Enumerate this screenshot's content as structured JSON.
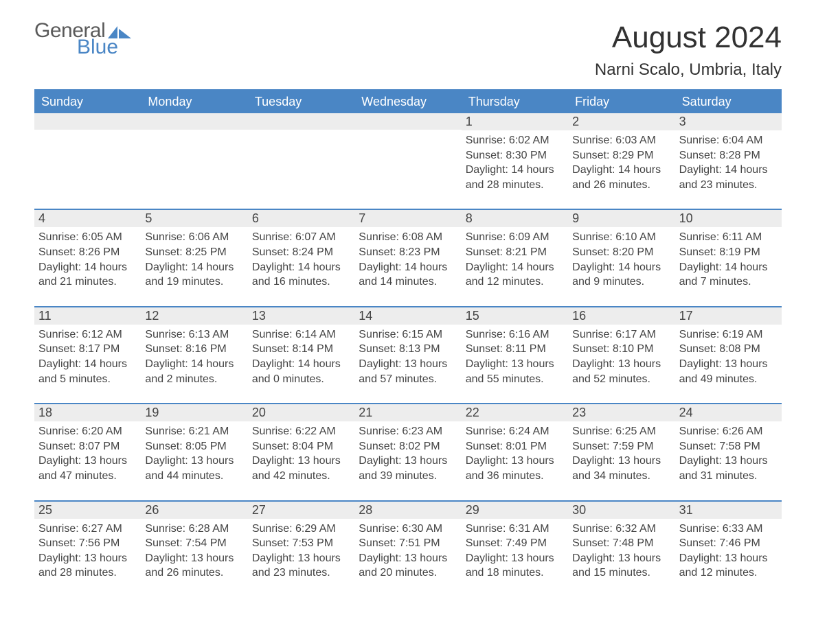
{
  "logo": {
    "text1": "General",
    "text2": "Blue",
    "shape_color": "#4a86c5"
  },
  "title": "August 2024",
  "subtitle": "Narni Scalo, Umbria, Italy",
  "colors": {
    "header_bg": "#4a86c5",
    "header_text": "#ffffff",
    "row_divider": "#4a86c5",
    "daynum_bg": "#ededed",
    "text": "#444444",
    "page_bg": "#ffffff"
  },
  "typography": {
    "title_fontsize": 44,
    "subtitle_fontsize": 24,
    "dow_fontsize": 18,
    "daynum_fontsize": 18,
    "body_fontsize": 16
  },
  "daysOfWeek": [
    "Sunday",
    "Monday",
    "Tuesday",
    "Wednesday",
    "Thursday",
    "Friday",
    "Saturday"
  ],
  "weeks": [
    [
      {
        "day": null
      },
      {
        "day": null
      },
      {
        "day": null
      },
      {
        "day": null
      },
      {
        "day": "1",
        "sunrise": "Sunrise: 6:02 AM",
        "sunset": "Sunset: 8:30 PM",
        "daylight1": "Daylight: 14 hours",
        "daylight2": "and 28 minutes."
      },
      {
        "day": "2",
        "sunrise": "Sunrise: 6:03 AM",
        "sunset": "Sunset: 8:29 PM",
        "daylight1": "Daylight: 14 hours",
        "daylight2": "and 26 minutes."
      },
      {
        "day": "3",
        "sunrise": "Sunrise: 6:04 AM",
        "sunset": "Sunset: 8:28 PM",
        "daylight1": "Daylight: 14 hours",
        "daylight2": "and 23 minutes."
      }
    ],
    [
      {
        "day": "4",
        "sunrise": "Sunrise: 6:05 AM",
        "sunset": "Sunset: 8:26 PM",
        "daylight1": "Daylight: 14 hours",
        "daylight2": "and 21 minutes."
      },
      {
        "day": "5",
        "sunrise": "Sunrise: 6:06 AM",
        "sunset": "Sunset: 8:25 PM",
        "daylight1": "Daylight: 14 hours",
        "daylight2": "and 19 minutes."
      },
      {
        "day": "6",
        "sunrise": "Sunrise: 6:07 AM",
        "sunset": "Sunset: 8:24 PM",
        "daylight1": "Daylight: 14 hours",
        "daylight2": "and 16 minutes."
      },
      {
        "day": "7",
        "sunrise": "Sunrise: 6:08 AM",
        "sunset": "Sunset: 8:23 PM",
        "daylight1": "Daylight: 14 hours",
        "daylight2": "and 14 minutes."
      },
      {
        "day": "8",
        "sunrise": "Sunrise: 6:09 AM",
        "sunset": "Sunset: 8:21 PM",
        "daylight1": "Daylight: 14 hours",
        "daylight2": "and 12 minutes."
      },
      {
        "day": "9",
        "sunrise": "Sunrise: 6:10 AM",
        "sunset": "Sunset: 8:20 PM",
        "daylight1": "Daylight: 14 hours",
        "daylight2": "and 9 minutes."
      },
      {
        "day": "10",
        "sunrise": "Sunrise: 6:11 AM",
        "sunset": "Sunset: 8:19 PM",
        "daylight1": "Daylight: 14 hours",
        "daylight2": "and 7 minutes."
      }
    ],
    [
      {
        "day": "11",
        "sunrise": "Sunrise: 6:12 AM",
        "sunset": "Sunset: 8:17 PM",
        "daylight1": "Daylight: 14 hours",
        "daylight2": "and 5 minutes."
      },
      {
        "day": "12",
        "sunrise": "Sunrise: 6:13 AM",
        "sunset": "Sunset: 8:16 PM",
        "daylight1": "Daylight: 14 hours",
        "daylight2": "and 2 minutes."
      },
      {
        "day": "13",
        "sunrise": "Sunrise: 6:14 AM",
        "sunset": "Sunset: 8:14 PM",
        "daylight1": "Daylight: 14 hours",
        "daylight2": "and 0 minutes."
      },
      {
        "day": "14",
        "sunrise": "Sunrise: 6:15 AM",
        "sunset": "Sunset: 8:13 PM",
        "daylight1": "Daylight: 13 hours",
        "daylight2": "and 57 minutes."
      },
      {
        "day": "15",
        "sunrise": "Sunrise: 6:16 AM",
        "sunset": "Sunset: 8:11 PM",
        "daylight1": "Daylight: 13 hours",
        "daylight2": "and 55 minutes."
      },
      {
        "day": "16",
        "sunrise": "Sunrise: 6:17 AM",
        "sunset": "Sunset: 8:10 PM",
        "daylight1": "Daylight: 13 hours",
        "daylight2": "and 52 minutes."
      },
      {
        "day": "17",
        "sunrise": "Sunrise: 6:19 AM",
        "sunset": "Sunset: 8:08 PM",
        "daylight1": "Daylight: 13 hours",
        "daylight2": "and 49 minutes."
      }
    ],
    [
      {
        "day": "18",
        "sunrise": "Sunrise: 6:20 AM",
        "sunset": "Sunset: 8:07 PM",
        "daylight1": "Daylight: 13 hours",
        "daylight2": "and 47 minutes."
      },
      {
        "day": "19",
        "sunrise": "Sunrise: 6:21 AM",
        "sunset": "Sunset: 8:05 PM",
        "daylight1": "Daylight: 13 hours",
        "daylight2": "and 44 minutes."
      },
      {
        "day": "20",
        "sunrise": "Sunrise: 6:22 AM",
        "sunset": "Sunset: 8:04 PM",
        "daylight1": "Daylight: 13 hours",
        "daylight2": "and 42 minutes."
      },
      {
        "day": "21",
        "sunrise": "Sunrise: 6:23 AM",
        "sunset": "Sunset: 8:02 PM",
        "daylight1": "Daylight: 13 hours",
        "daylight2": "and 39 minutes."
      },
      {
        "day": "22",
        "sunrise": "Sunrise: 6:24 AM",
        "sunset": "Sunset: 8:01 PM",
        "daylight1": "Daylight: 13 hours",
        "daylight2": "and 36 minutes."
      },
      {
        "day": "23",
        "sunrise": "Sunrise: 6:25 AM",
        "sunset": "Sunset: 7:59 PM",
        "daylight1": "Daylight: 13 hours",
        "daylight2": "and 34 minutes."
      },
      {
        "day": "24",
        "sunrise": "Sunrise: 6:26 AM",
        "sunset": "Sunset: 7:58 PM",
        "daylight1": "Daylight: 13 hours",
        "daylight2": "and 31 minutes."
      }
    ],
    [
      {
        "day": "25",
        "sunrise": "Sunrise: 6:27 AM",
        "sunset": "Sunset: 7:56 PM",
        "daylight1": "Daylight: 13 hours",
        "daylight2": "and 28 minutes."
      },
      {
        "day": "26",
        "sunrise": "Sunrise: 6:28 AM",
        "sunset": "Sunset: 7:54 PM",
        "daylight1": "Daylight: 13 hours",
        "daylight2": "and 26 minutes."
      },
      {
        "day": "27",
        "sunrise": "Sunrise: 6:29 AM",
        "sunset": "Sunset: 7:53 PM",
        "daylight1": "Daylight: 13 hours",
        "daylight2": "and 23 minutes."
      },
      {
        "day": "28",
        "sunrise": "Sunrise: 6:30 AM",
        "sunset": "Sunset: 7:51 PM",
        "daylight1": "Daylight: 13 hours",
        "daylight2": "and 20 minutes."
      },
      {
        "day": "29",
        "sunrise": "Sunrise: 6:31 AM",
        "sunset": "Sunset: 7:49 PM",
        "daylight1": "Daylight: 13 hours",
        "daylight2": "and 18 minutes."
      },
      {
        "day": "30",
        "sunrise": "Sunrise: 6:32 AM",
        "sunset": "Sunset: 7:48 PM",
        "daylight1": "Daylight: 13 hours",
        "daylight2": "and 15 minutes."
      },
      {
        "day": "31",
        "sunrise": "Sunrise: 6:33 AM",
        "sunset": "Sunset: 7:46 PM",
        "daylight1": "Daylight: 13 hours",
        "daylight2": "and 12 minutes."
      }
    ]
  ]
}
